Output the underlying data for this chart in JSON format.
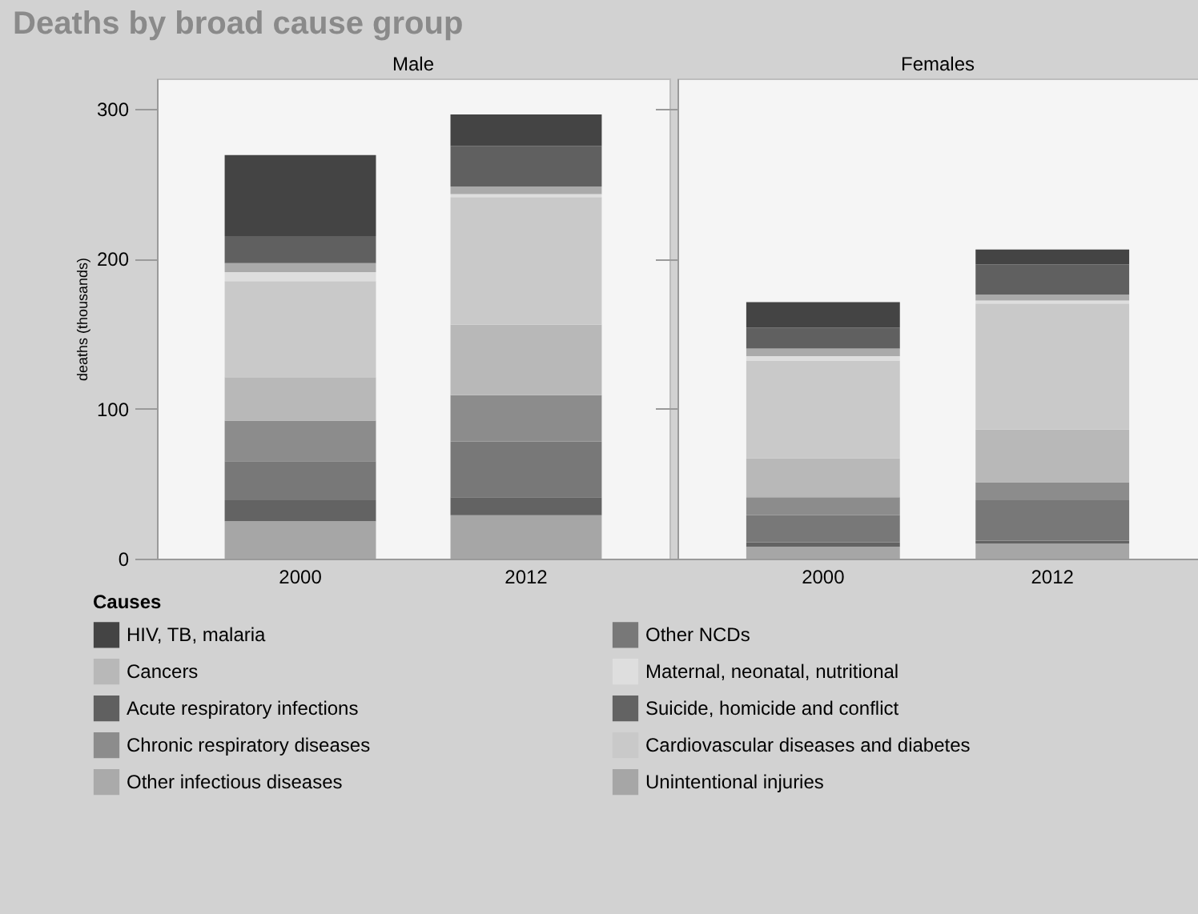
{
  "chart_data": [
    {
      "type": "bar",
      "title": "Deaths by broad cause group",
      "subtitle": "Male",
      "ylabel": "deaths (thousands)",
      "legend_title": "Causes",
      "legend": "bottom",
      "stacked": true,
      "categories": [
        "2000",
        "2012"
      ],
      "ylim": [
        0,
        320
      ],
      "yticks": [
        0,
        100,
        200,
        300
      ],
      "series": [
        {
          "name": "Unintentional injuries",
          "color": "#a6a6a6",
          "values": [
            25,
            29
          ]
        },
        {
          "name": "Suicide, homicide and conflict",
          "color": "#636363",
          "values": [
            14,
            12
          ]
        },
        {
          "name": "Other NCDs",
          "color": "#787878",
          "values": [
            26,
            37
          ]
        },
        {
          "name": "Chronic respiratory diseases",
          "color": "#8c8c8c",
          "values": [
            27,
            31
          ]
        },
        {
          "name": "Cancers",
          "color": "#b8b8b8",
          "values": [
            29,
            47
          ]
        },
        {
          "name": "Cardiovascular diseases and diabetes",
          "color": "#c9c9c9",
          "values": [
            64,
            85
          ]
        },
        {
          "name": "Maternal, neonatal, nutritional",
          "color": "#dedede",
          "values": [
            6,
            2
          ]
        },
        {
          "name": "Other infectious diseases",
          "color": "#aaaaaa",
          "values": [
            6,
            5
          ]
        },
        {
          "name": "Acute respiratory infections",
          "color": "#606060",
          "values": [
            18,
            27
          ]
        },
        {
          "name": "HIV, TB, malaria",
          "color": "#444444",
          "values": [
            54,
            21
          ]
        }
      ]
    },
    {
      "type": "bar",
      "subtitle": "Females",
      "stacked": true,
      "tick_labels": "x",
      "categories": [
        "2000",
        "2012"
      ],
      "ylim": [
        0,
        320
      ],
      "yticks": [
        0,
        100,
        200,
        300
      ],
      "series": [
        {
          "color": "#a6a6a6",
          "values": [
            8,
            10
          ]
        },
        {
          "color": "#636363",
          "values": [
            3,
            2
          ]
        },
        {
          "color": "#787878",
          "values": [
            18,
            27
          ]
        },
        {
          "color": "#8c8c8c",
          "values": [
            12,
            12
          ]
        },
        {
          "color": "#b8b8b8",
          "values": [
            26,
            35
          ]
        },
        {
          "color": "#c9c9c9",
          "values": [
            65,
            84
          ]
        },
        {
          "color": "#dedede",
          "values": [
            3,
            2
          ]
        },
        {
          "color": "#aaaaaa",
          "values": [
            5,
            4
          ]
        },
        {
          "color": "#606060",
          "values": [
            14,
            20
          ]
        },
        {
          "color": "#444444",
          "values": [
            17,
            10
          ]
        }
      ]
    }
  ]
}
